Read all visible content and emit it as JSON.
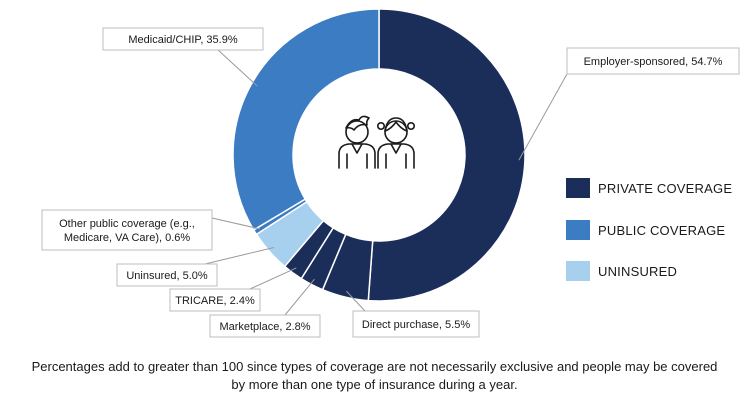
{
  "chart_data": {
    "type": "pie",
    "variant": "donut",
    "slices": [
      {
        "label": "Employer-sponsored",
        "value": 54.7,
        "category": "private"
      },
      {
        "label": "Direct purchase",
        "value": 5.5,
        "category": "private"
      },
      {
        "label": "Marketplace",
        "value": 2.8,
        "category": "private"
      },
      {
        "label": "TRICARE",
        "value": 2.4,
        "category": "private"
      },
      {
        "label": "Uninsured",
        "value": 5.0,
        "category": "uninsured"
      },
      {
        "label": "Other public coverage (e.g., Medicare, VA Care)",
        "value": 0.6,
        "category": "public"
      },
      {
        "label": "Medicaid/CHIP",
        "value": 35.9,
        "category": "public"
      }
    ],
    "callouts": [
      "Employer-sponsored, 54.7%",
      "Direct purchase, 5.5%",
      "Marketplace, 2.8%",
      "TRICARE, 2.4%",
      "Uninsured, 5.0%",
      [
        "Other public coverage (e.g.,",
        "Medicare, VA Care), 0.6%"
      ],
      "Medicaid/CHIP, 35.9%"
    ],
    "legend": [
      {
        "label": "PRIVATE COVERAGE",
        "category": "private"
      },
      {
        "label": "PUBLIC COVERAGE",
        "category": "public"
      },
      {
        "label": "UNINSURED",
        "category": "uninsured"
      }
    ],
    "colors": {
      "private": "#1b2e5a",
      "public": "#3b7cc2",
      "uninsured": "#a7d0ef"
    },
    "center_icon": "two-children-icon"
  },
  "footnote": {
    "line1": "Percentages add to greater than 100 since types of coverage are not necessarily exclusive and people may be covered",
    "line2": "by more than one type of insurance during a year."
  }
}
